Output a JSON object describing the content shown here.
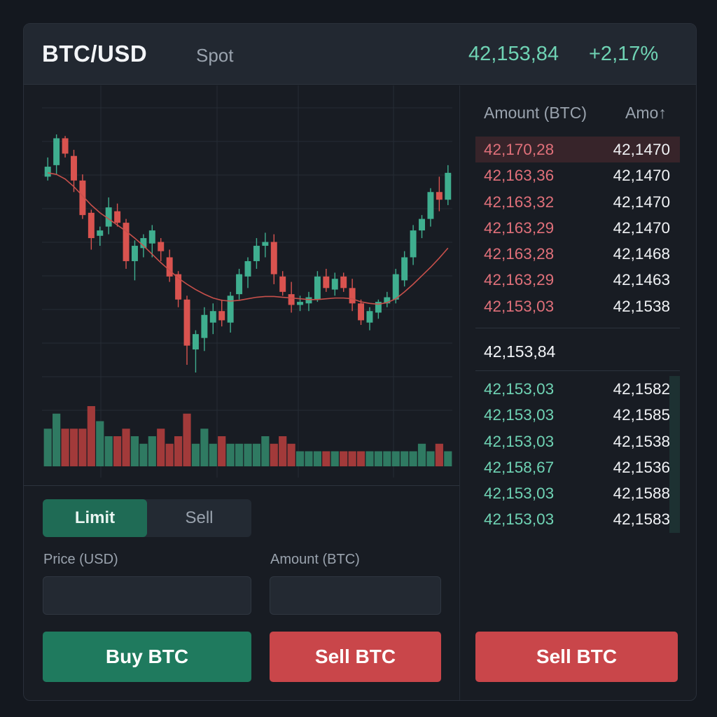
{
  "header": {
    "pair": "BTC/USD",
    "market": "Spot",
    "last_price": "42,153,84",
    "change": "+2,17%"
  },
  "chart": {
    "candles": [
      [
        42105,
        42130,
        42100,
        42118
      ],
      [
        42120,
        42160,
        42108,
        42155
      ],
      [
        42155,
        42158,
        42130,
        42135
      ],
      [
        42132,
        42140,
        42085,
        42100
      ],
      [
        42100,
        42108,
        42050,
        42055
      ],
      [
        42058,
        42062,
        42010,
        42025
      ],
      [
        42028,
        42040,
        42015,
        42035
      ],
      [
        42040,
        42078,
        42030,
        42065
      ],
      [
        42060,
        42070,
        42040,
        42045
      ],
      [
        42045,
        42050,
        41985,
        41995
      ],
      [
        41995,
        42022,
        41970,
        42015
      ],
      [
        42012,
        42030,
        42000,
        42025
      ],
      [
        42018,
        42042,
        42000,
        42035
      ],
      [
        42020,
        42025,
        41995,
        42008
      ],
      [
        42000,
        42010,
        41968,
        41975
      ],
      [
        41978,
        41982,
        41935,
        41945
      ],
      [
        41945,
        41950,
        41860,
        41885
      ],
      [
        41880,
        41905,
        41850,
        41900
      ],
      [
        41895,
        41935,
        41878,
        41925
      ],
      [
        41915,
        41940,
        41900,
        41930
      ],
      [
        41930,
        41945,
        41910,
        41918
      ],
      [
        41915,
        41955,
        41902,
        41950
      ],
      [
        41952,
        41985,
        41945,
        41978
      ],
      [
        41975,
        42000,
        41960,
        41995
      ],
      [
        41995,
        42025,
        41985,
        42015
      ],
      [
        42015,
        42032,
        42000,
        42020
      ],
      [
        42020,
        42030,
        41965,
        41978
      ],
      [
        41975,
        41982,
        41950,
        41955
      ],
      [
        41952,
        41968,
        41928,
        41938
      ],
      [
        41938,
        41950,
        41930,
        41942
      ],
      [
        41940,
        41955,
        41930,
        41948
      ],
      [
        41945,
        41982,
        41942,
        41975
      ],
      [
        41975,
        41985,
        41955,
        41960
      ],
      [
        41958,
        41980,
        41950,
        41972
      ],
      [
        41975,
        41980,
        41955,
        41960
      ],
      [
        41960,
        41972,
        41930,
        41940
      ],
      [
        41940,
        41945,
        41912,
        41918
      ],
      [
        41915,
        41935,
        41905,
        41930
      ],
      [
        41928,
        41945,
        41920,
        41942
      ],
      [
        41940,
        41955,
        41935,
        41948
      ],
      [
        41945,
        41985,
        41940,
        41978
      ],
      [
        41970,
        42008,
        41962,
        42000
      ],
      [
        42000,
        42042,
        41990,
        42035
      ],
      [
        42035,
        42055,
        42025,
        42050
      ],
      [
        42050,
        42090,
        42040,
        42085
      ],
      [
        42085,
        42105,
        42060,
        42075
      ],
      [
        42075,
        42120,
        42068,
        42110
      ]
    ],
    "moving_average": [
      42110,
      42108,
      42102,
      42092,
      42080,
      42068,
      42058,
      42050,
      42042,
      42034,
      42025,
      42015,
      42004,
      41993,
      41983,
      41973,
      41965,
      41958,
      41952,
      41947,
      41944,
      41943,
      41944,
      41946,
      41948,
      41949,
      41949,
      41948,
      41947,
      41946,
      41945,
      41945,
      41946,
      41947,
      41947,
      41946,
      41942,
      41940,
      41939,
      41941,
      41946,
      41955,
      41965,
      41976,
      41987,
      41999,
      42012
    ],
    "volume": [
      5,
      7,
      5,
      5,
      5,
      8,
      6,
      4,
      4,
      5,
      4,
      3,
      4,
      5,
      3,
      4,
      7,
      3,
      5,
      3,
      4,
      3,
      3,
      3,
      3,
      4,
      3,
      4,
      3,
      2,
      2,
      2,
      2,
      2,
      2,
      2,
      2,
      2,
      2,
      2,
      2,
      2,
      2,
      3,
      2,
      3,
      2
    ]
  },
  "orderbook": {
    "headers": {
      "price": "Amount (BTC)",
      "amount": "Amo↑"
    },
    "asks": [
      {
        "price": "42,170,28",
        "amount": "42,1470",
        "depth": 1.0
      },
      {
        "price": "42,163,36",
        "amount": "42,1470",
        "depth": 0
      },
      {
        "price": "42,163,32",
        "amount": "42,1470",
        "depth": 0
      },
      {
        "price": "42,163,29",
        "amount": "42,1470",
        "depth": 0
      },
      {
        "price": "42,163,28",
        "amount": "42,1468",
        "depth": 0
      },
      {
        "price": "42,163,29",
        "amount": "42,1463",
        "depth": 0
      },
      {
        "price": "42,153,03",
        "amount": "42,1538",
        "depth": 0
      }
    ],
    "mid_price": "42,153,84",
    "bids": [
      {
        "price": "42,153,03",
        "amount": "42,1582",
        "depth": 0.05
      },
      {
        "price": "42,153,03",
        "amount": "42,1585",
        "depth": 0.05
      },
      {
        "price": "42,153,03",
        "amount": "42,1538",
        "depth": 0.05
      },
      {
        "price": "42,158,67",
        "amount": "42,1536",
        "depth": 0.05
      },
      {
        "price": "42,153,03",
        "amount": "42,1588",
        "depth": 0.05
      },
      {
        "price": "42,153,03",
        "amount": "42,1583",
        "depth": 0.05
      }
    ]
  },
  "order_form": {
    "tabs": {
      "active": "Limit",
      "inactive": "Sell"
    },
    "price_label": "Price (USD)",
    "amount_label": "Amount (BTC)",
    "price_value": "",
    "amount_value": "",
    "buy_label": "Buy BTC",
    "sell_label": "Sell BTC",
    "sell_label_2": "Sell BTC"
  },
  "colors": {
    "up": "#3fae8f",
    "down": "#d9534f",
    "up_volume": "#2f7a62",
    "down_volume": "#a23a3a",
    "ma_line": "#c8504b",
    "grid": "#262c35"
  }
}
